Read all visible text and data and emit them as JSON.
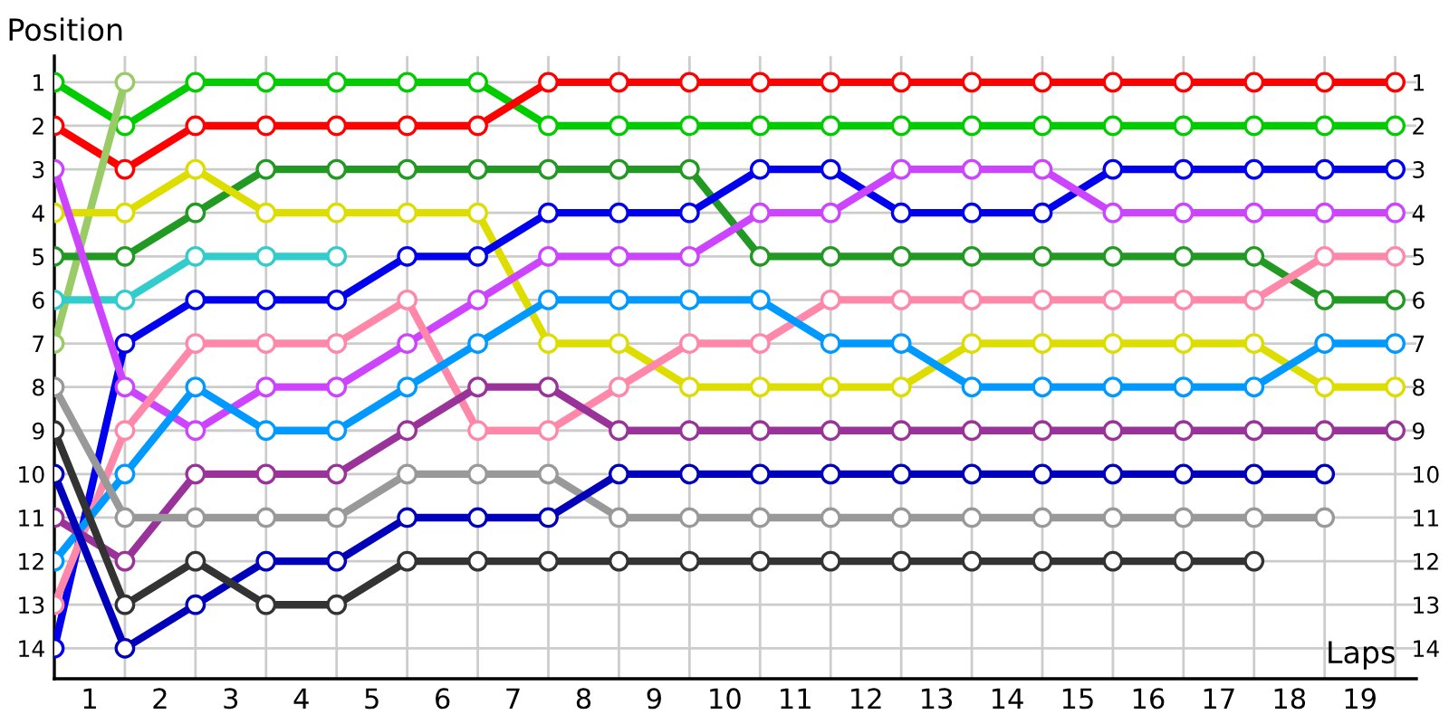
{
  "chart_data": {
    "type": "line",
    "xlabel": "Laps",
    "ylabel": "Position",
    "marker": "circle",
    "line_style": "solid",
    "grid": true,
    "x": [
      0,
      1,
      2,
      3,
      4,
      5,
      6,
      7,
      8,
      9,
      10,
      11,
      12,
      13,
      14,
      15,
      16,
      17,
      18,
      19
    ],
    "xlim": [
      0,
      19.3
    ],
    "ylim": [
      14.7,
      0.4
    ],
    "y2lim": [
      14.7,
      0.4
    ],
    "xticks": [
      {
        "value": 0,
        "label": null
      },
      {
        "value": 1,
        "label": null
      },
      {
        "value": 2,
        "label": null
      },
      {
        "value": 3,
        "label": null
      },
      {
        "value": 4,
        "label": null
      },
      {
        "value": 5,
        "label": null
      },
      {
        "value": 6,
        "label": null
      },
      {
        "value": 7,
        "label": null
      },
      {
        "value": 8,
        "label": null
      },
      {
        "value": 9,
        "label": null
      },
      {
        "value": 10,
        "label": null
      },
      {
        "value": 11,
        "label": null
      },
      {
        "value": 12,
        "label": null
      },
      {
        "value": 13,
        "label": null
      },
      {
        "value": 14,
        "label": null
      },
      {
        "value": 15,
        "label": null
      },
      {
        "value": 16,
        "label": null
      },
      {
        "value": 17,
        "label": null
      },
      {
        "value": 18,
        "label": null
      },
      {
        "value": 19,
        "label": null
      },
      {
        "value": 0.5,
        "label": "1"
      },
      {
        "value": 1.5,
        "label": "2"
      },
      {
        "value": 2.5,
        "label": "3"
      },
      {
        "value": 3.5,
        "label": "4"
      },
      {
        "value": 4.5,
        "label": "5"
      },
      {
        "value": 5.5,
        "label": "6"
      },
      {
        "value": 6.5,
        "label": "7"
      },
      {
        "value": 7.5,
        "label": "8"
      },
      {
        "value": 8.5,
        "label": "9"
      },
      {
        "value": 9.5,
        "label": "10"
      },
      {
        "value": 10.5,
        "label": "11"
      },
      {
        "value": 11.5,
        "label": "12"
      },
      {
        "value": 12.5,
        "label": "13"
      },
      {
        "value": 13.5,
        "label": "14"
      },
      {
        "value": 14.5,
        "label": "15"
      },
      {
        "value": 15.5,
        "label": "16"
      },
      {
        "value": 16.5,
        "label": "17"
      },
      {
        "value": 17.5,
        "label": "18"
      },
      {
        "value": 18.5,
        "label": "19"
      }
    ],
    "yticks": [
      1,
      2,
      3,
      4,
      5,
      6,
      7,
      8,
      9,
      10,
      11,
      12,
      13,
      14
    ],
    "y2ticks": [
      1,
      2,
      3,
      4,
      5,
      6,
      7,
      8,
      9,
      10,
      11,
      12,
      13,
      14
    ],
    "series": [
      {
        "color": "#00cc00",
        "values": [
          1,
          2,
          1,
          1,
          1,
          1,
          1,
          2,
          2,
          2,
          2,
          2,
          2,
          2,
          2,
          2,
          2,
          2,
          2,
          2
        ]
      },
      {
        "color": "#ff0000",
        "values": [
          2,
          3,
          2,
          2,
          2,
          2,
          2,
          1,
          1,
          1,
          1,
          1,
          1,
          1,
          1,
          1,
          1,
          1,
          1,
          1
        ]
      },
      {
        "color": "#99cc66",
        "values": [
          7,
          1,
          null,
          null,
          null,
          null,
          null,
          null,
          null,
          null,
          null,
          null,
          null,
          null,
          null,
          null,
          null,
          null,
          null,
          null
        ]
      },
      {
        "color": "#229922",
        "values": [
          5,
          5,
          4,
          3,
          3,
          3,
          3,
          3,
          3,
          3,
          5,
          5,
          5,
          5,
          5,
          5,
          5,
          5,
          6,
          6
        ]
      },
      {
        "color": "#dddd00",
        "values": [
          4,
          4,
          3,
          4,
          4,
          4,
          4,
          7,
          7,
          8,
          8,
          8,
          8,
          7,
          7,
          7,
          7,
          7,
          8,
          8
        ]
      },
      {
        "color": "#33cccc",
        "values": [
          6,
          6,
          5,
          5,
          5,
          null,
          null,
          null,
          null,
          null,
          null,
          null,
          null,
          null,
          null,
          null,
          null,
          null,
          null,
          null
        ]
      },
      {
        "color": "#0000ee",
        "values": [
          14,
          7,
          6,
          6,
          6,
          5,
          5,
          4,
          4,
          4,
          3,
          3,
          4,
          4,
          4,
          3,
          3,
          3,
          3,
          3
        ]
      },
      {
        "color": "#cc44ff",
        "values": [
          3,
          8,
          9,
          8,
          8,
          7,
          6,
          5,
          5,
          5,
          4,
          4,
          3,
          3,
          3,
          4,
          4,
          4,
          4,
          4
        ]
      },
      {
        "color": "#ff88aa",
        "values": [
          13,
          9,
          7,
          7,
          7,
          6,
          9,
          9,
          8,
          7,
          7,
          6,
          6,
          6,
          6,
          6,
          6,
          6,
          5,
          5
        ]
      },
      {
        "color": "#0099ff",
        "values": [
          12,
          10,
          8,
          9,
          9,
          8,
          7,
          6,
          6,
          6,
          6,
          7,
          7,
          8,
          8,
          8,
          8,
          8,
          7,
          7
        ]
      },
      {
        "color": "#993399",
        "values": [
          11,
          12,
          10,
          10,
          10,
          9,
          8,
          8,
          9,
          9,
          9,
          9,
          9,
          9,
          9,
          9,
          9,
          9,
          9,
          9
        ]
      },
      {
        "color": "#999999",
        "values": [
          8,
          11,
          11,
          11,
          11,
          10,
          10,
          10,
          11,
          11,
          11,
          11,
          11,
          11,
          11,
          11,
          11,
          11,
          11,
          null
        ]
      },
      {
        "color": "#0000bb",
        "values": [
          10,
          14,
          13,
          12,
          12,
          11,
          11,
          11,
          10,
          10,
          10,
          10,
          10,
          10,
          10,
          10,
          10,
          10,
          10,
          null
        ]
      },
      {
        "color": "#333333",
        "values": [
          9,
          13,
          12,
          13,
          13,
          12,
          12,
          12,
          12,
          12,
          12,
          12,
          12,
          12,
          12,
          12,
          12,
          12,
          null,
          null
        ]
      }
    ]
  }
}
